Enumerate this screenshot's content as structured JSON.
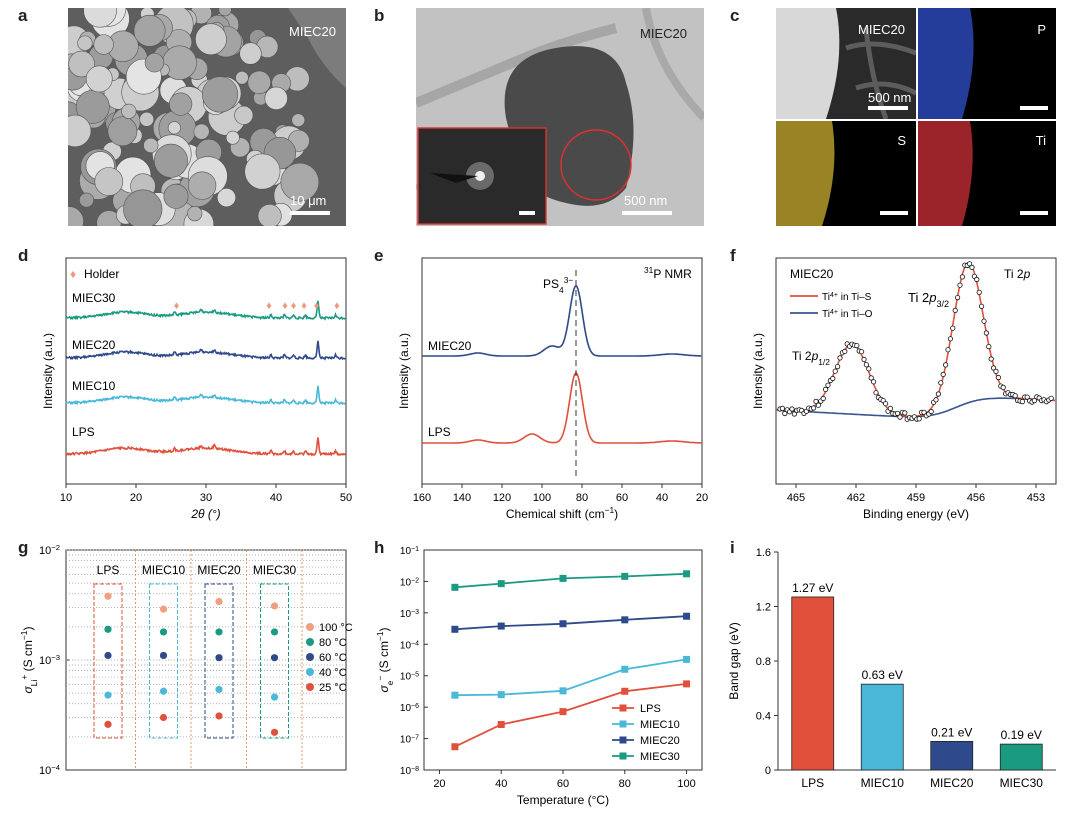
{
  "panels": {
    "a": {
      "letter": "a",
      "sample": "MIEC20",
      "scale": "10 μm"
    },
    "b": {
      "letter": "b",
      "sample": "MIEC20",
      "scale": "500 nm"
    },
    "c": {
      "letter": "c",
      "sample": "MIEC20",
      "scale": "500 nm",
      "maps": [
        "P",
        "S",
        "Ti"
      ]
    },
    "d": {
      "letter": "d"
    },
    "e": {
      "letter": "e"
    },
    "f": {
      "letter": "f"
    },
    "g": {
      "letter": "g"
    },
    "h": {
      "letter": "h"
    },
    "i": {
      "letter": "i"
    }
  },
  "colors": {
    "LPS": "#e0503a",
    "MIEC10": "#4ab8d8",
    "MIEC20": "#2e4a8a",
    "MIEC30": "#1a9a80",
    "holder": "#f0987a",
    "fit": "#e0503a",
    "ti_o": "#3a5590"
  },
  "chart_data": [
    {
      "panel": "d",
      "type": "line",
      "title": "",
      "xlabel": "2θ (°)",
      "ylabel": "Intensity (a.u.)",
      "xlim": [
        10,
        50
      ],
      "xticks": [
        10,
        20,
        30,
        40,
        50
      ],
      "legend": "Holder",
      "series": [
        {
          "name": "MIEC30",
          "offset": 3
        },
        {
          "name": "MIEC20",
          "offset": 2
        },
        {
          "name": "MIEC10",
          "offset": 1
        },
        {
          "name": "LPS",
          "offset": 0
        }
      ],
      "peaks": [
        25.5,
        29.3,
        31.2,
        39.3,
        41.2,
        42.5,
        44.2,
        46.0,
        48.5
      ],
      "holder_peaks": [
        25.8,
        39.0,
        41.3,
        42.5,
        44.0,
        45.8,
        48.7
      ]
    },
    {
      "panel": "e",
      "type": "line",
      "title": "31P NMR",
      "xlabel": "Chemical shift (cm−1)",
      "ylabel": "Intensity (a.u.)",
      "xlim": [
        160,
        20
      ],
      "xticks": [
        160,
        140,
        120,
        100,
        80,
        60,
        40,
        20
      ],
      "annotation": "PS43−",
      "series": [
        {
          "name": "MIEC20",
          "peak": 83
        },
        {
          "name": "LPS",
          "peak": 83
        }
      ]
    },
    {
      "panel": "f",
      "type": "scatter",
      "title": "Ti 2p",
      "sample": "MIEC20",
      "xlabel": "Binding energy (eV)",
      "ylabel": "Intensity (a.u.)",
      "xlim": [
        466,
        452
      ],
      "xticks": [
        465,
        462,
        459,
        456,
        453
      ],
      "legend": [
        "Ti4+ in Ti–S",
        "Ti4+ in Ti–O"
      ],
      "annotations": [
        "Ti 2p3/2",
        "Ti 2p1/2"
      ],
      "peaks": [
        {
          "label": "Ti 2p3/2",
          "x": 456.4
        },
        {
          "label": "Ti 2p1/2",
          "x": 462.2
        }
      ]
    },
    {
      "panel": "g",
      "type": "scatter",
      "xlabel": "",
      "ylabel": "σLi+ (S cm−1)",
      "ylim": [
        0.0001,
        0.01
      ],
      "yticks": [
        "10−4",
        "10−3",
        "10−2"
      ],
      "categories": [
        "LPS",
        "MIEC10",
        "MIEC20",
        "MIEC30"
      ],
      "series": [
        {
          "name": "100 °C",
          "values": [
            0.0038,
            0.0029,
            0.0034,
            0.0031
          ]
        },
        {
          "name": "80 °C",
          "values": [
            0.0019,
            0.0018,
            0.0018,
            0.0018
          ]
        },
        {
          "name": "60 °C",
          "values": [
            0.0011,
            0.0011,
            0.00105,
            0.00105
          ]
        },
        {
          "name": "40 °C",
          "values": [
            0.00048,
            0.00052,
            0.00054,
            0.00046
          ]
        },
        {
          "name": "25 °C",
          "values": [
            0.00026,
            0.0003,
            0.00031,
            0.00022
          ]
        }
      ]
    },
    {
      "panel": "h",
      "type": "line",
      "xlabel": "Temperature (°C)",
      "ylabel": "σe− (S cm−1)",
      "xlim": [
        15,
        105
      ],
      "ylim": [
        1e-08,
        0.1
      ],
      "xticks": [
        20,
        40,
        60,
        80,
        100
      ],
      "yticks": [
        "10−8",
        "10−7",
        "10−6",
        "10−5",
        "10−4",
        "10−3",
        "10−2",
        "10−1"
      ],
      "x": [
        25,
        40,
        60,
        80,
        100
      ],
      "series": [
        {
          "name": "LPS",
          "values": [
            5.5e-08,
            2.8e-07,
            7.2e-07,
            3.2e-06,
            5.5e-06
          ]
        },
        {
          "name": "MIEC10",
          "values": [
            2.4e-06,
            2.5e-06,
            3.3e-06,
            1.6e-05,
            3.3e-05
          ]
        },
        {
          "name": "MIEC20",
          "values": [
            0.0003,
            0.00038,
            0.00045,
            0.0006,
            0.00078
          ]
        },
        {
          "name": "MIEC30",
          "values": [
            0.0065,
            0.0085,
            0.0125,
            0.0145,
            0.0175
          ]
        }
      ]
    },
    {
      "panel": "i",
      "type": "bar",
      "xlabel": "",
      "ylabel": "Band gap (eV)",
      "ylim": [
        0,
        1.6
      ],
      "yticks": [
        "0",
        "0.4",
        "0.8",
        "1.2",
        "1.6"
      ],
      "categories": [
        "LPS",
        "MIEC10",
        "MIEC20",
        "MIEC30"
      ],
      "values": [
        1.27,
        0.63,
        0.21,
        0.19
      ],
      "labels": [
        "1.27 eV",
        "0.63 eV",
        "0.21 eV",
        "0.19 eV"
      ]
    }
  ]
}
